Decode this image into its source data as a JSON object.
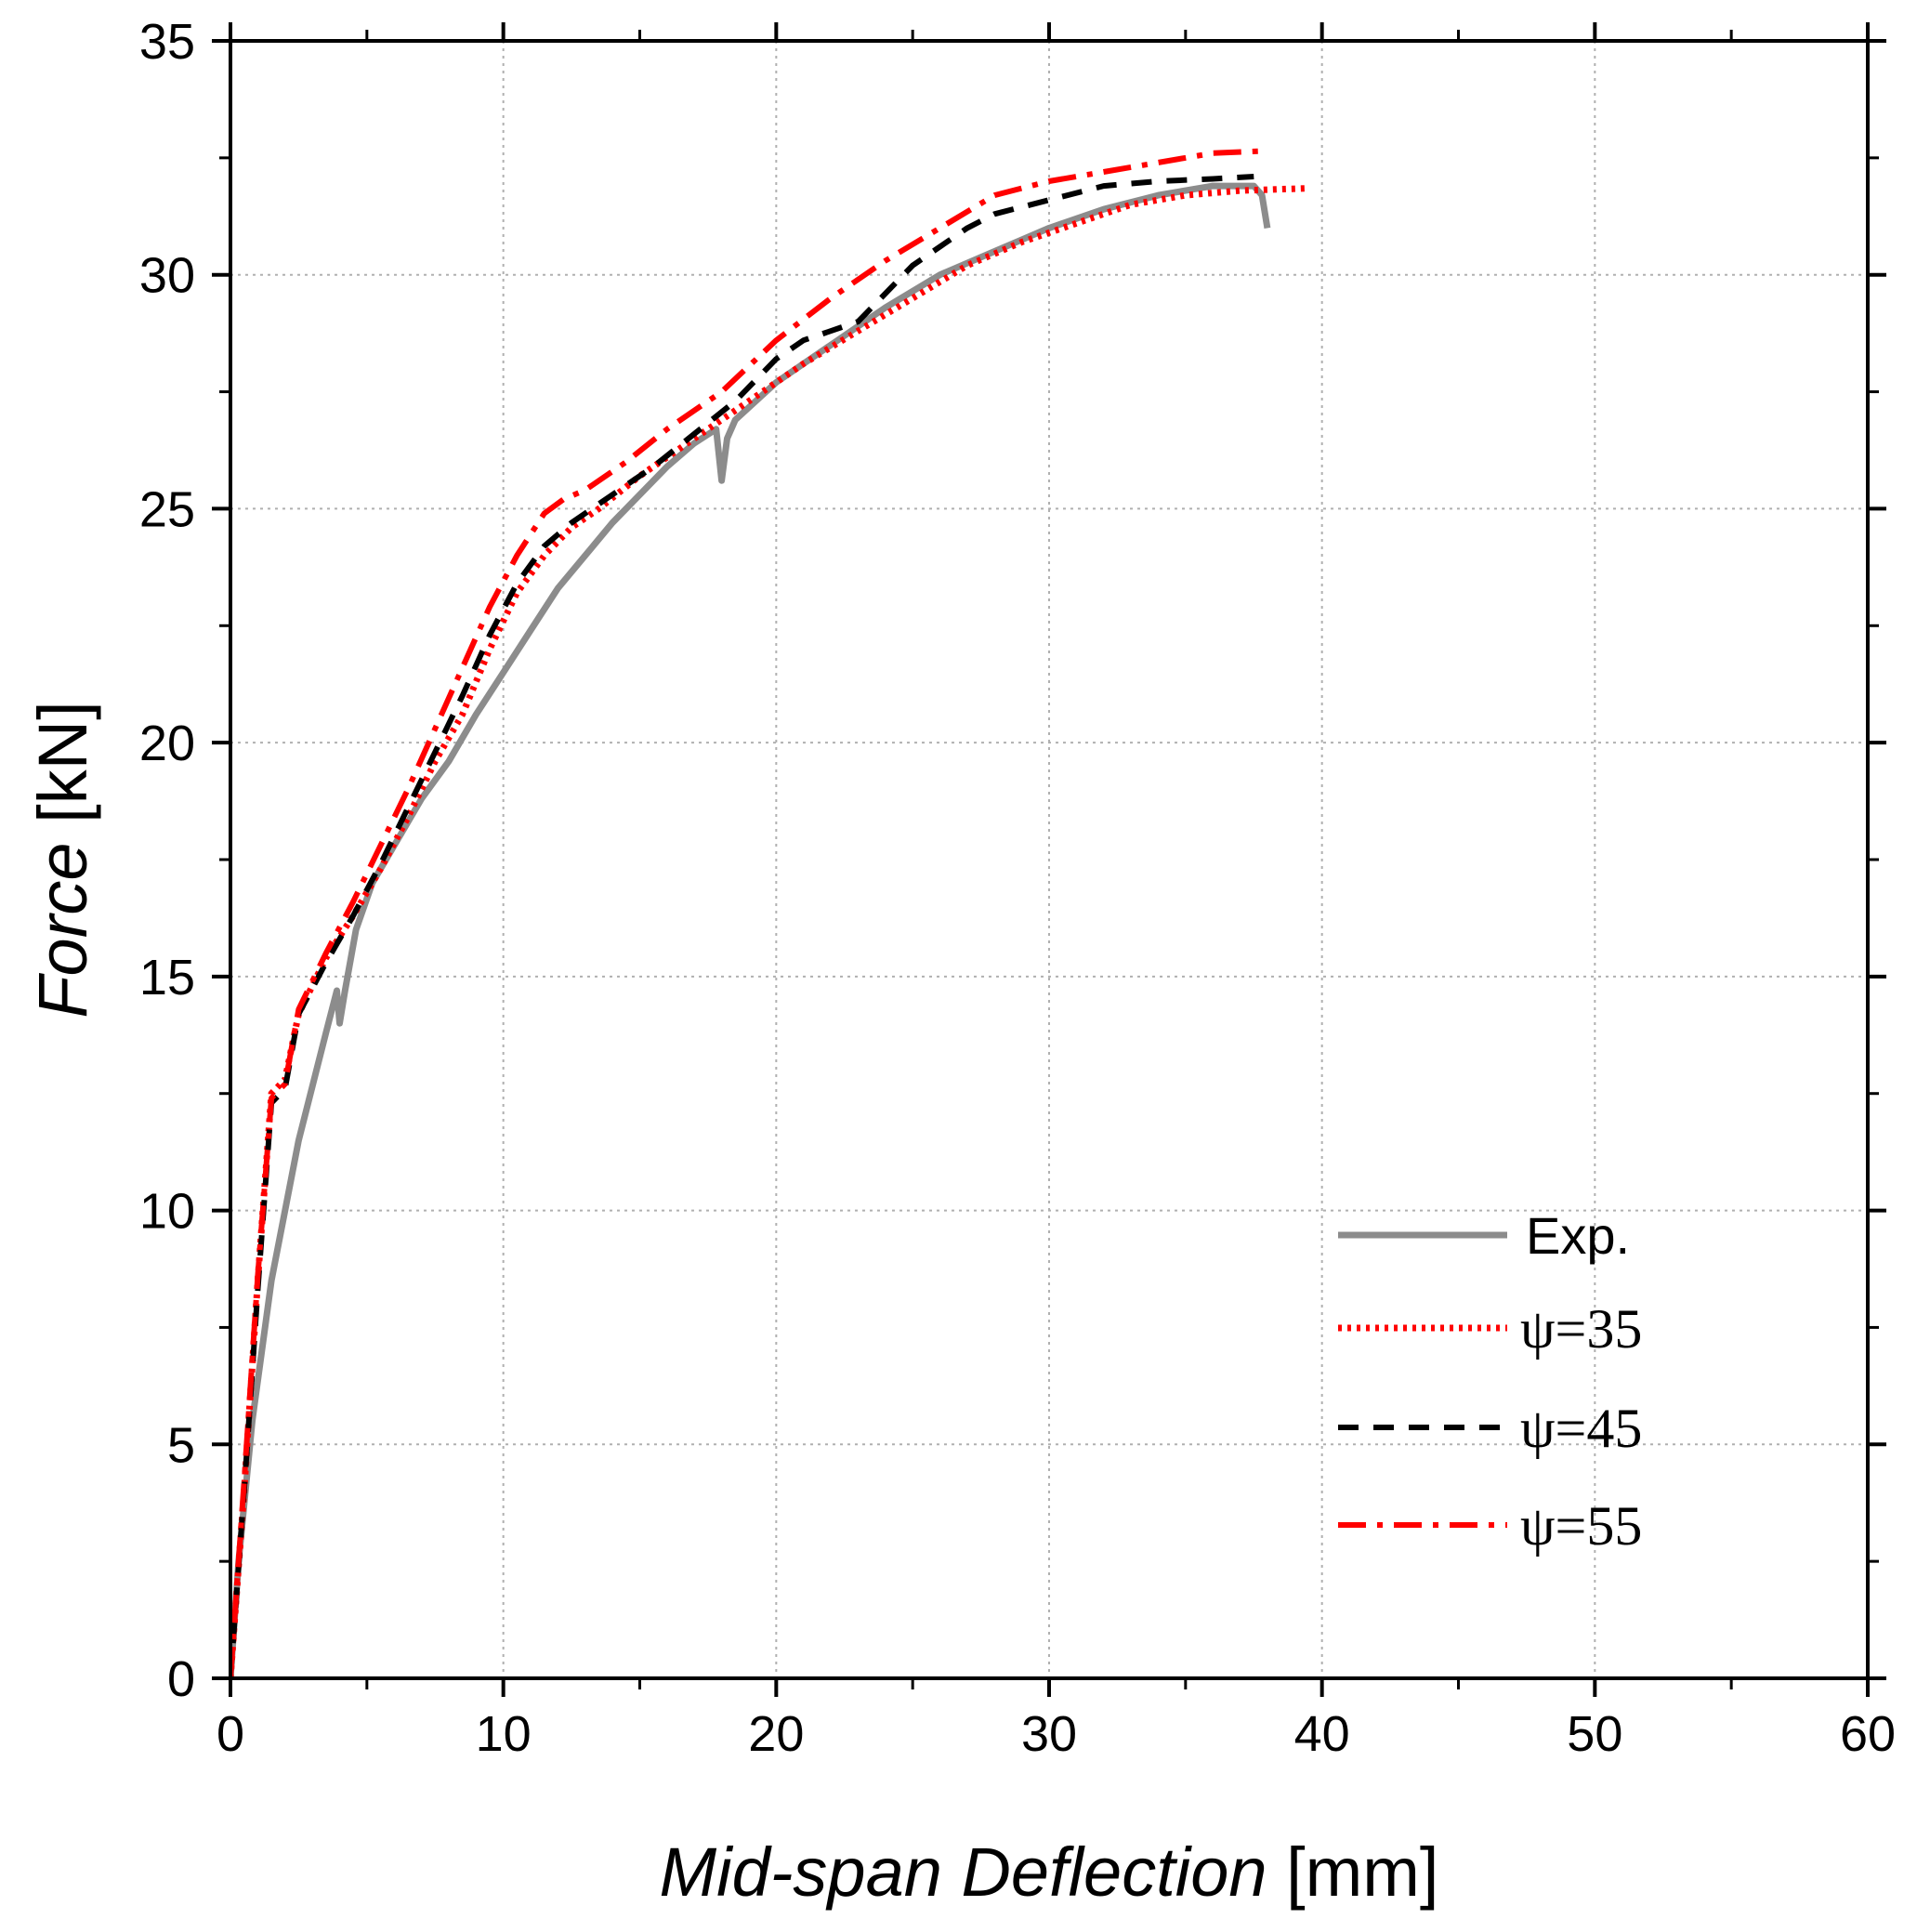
{
  "chart_data": {
    "type": "line",
    "title": "",
    "xlabel_italic": "Mid-span Deflection",
    "xlabel_unit": "[mm]",
    "ylabel_italic": "Force",
    "ylabel_unit": "[kN]",
    "xlim": [
      0,
      60
    ],
    "ylim": [
      0,
      35
    ],
    "xticks": [
      0,
      10,
      20,
      30,
      40,
      50,
      60
    ],
    "yticks": [
      0,
      5,
      10,
      15,
      20,
      25,
      30,
      35
    ],
    "grid": true,
    "legend_position": "bottom-right",
    "series": [
      {
        "name": "Exp.",
        "color": "#8c8c8c",
        "style": "solid",
        "points": [
          [
            0,
            0
          ],
          [
            0.3,
            2.5
          ],
          [
            0.8,
            5.5
          ],
          [
            1.5,
            8.5
          ],
          [
            2.5,
            11.5
          ],
          [
            3.5,
            13.8
          ],
          [
            3.9,
            14.7
          ],
          [
            4.0,
            14.0
          ],
          [
            4.2,
            14.7
          ],
          [
            4.6,
            16.0
          ],
          [
            5.2,
            17.0
          ],
          [
            6,
            17.8
          ],
          [
            7,
            18.8
          ],
          [
            8,
            19.6
          ],
          [
            9,
            20.6
          ],
          [
            10,
            21.5
          ],
          [
            11,
            22.4
          ],
          [
            12,
            23.3
          ],
          [
            13,
            24.0
          ],
          [
            14,
            24.7
          ],
          [
            15,
            25.3
          ],
          [
            16,
            25.9
          ],
          [
            17,
            26.4
          ],
          [
            17.8,
            26.7
          ],
          [
            18.0,
            25.6
          ],
          [
            18.2,
            26.5
          ],
          [
            18.5,
            26.9
          ],
          [
            20,
            27.7
          ],
          [
            22,
            28.5
          ],
          [
            24,
            29.3
          ],
          [
            26,
            30.0
          ],
          [
            28,
            30.5
          ],
          [
            30,
            31.0
          ],
          [
            32,
            31.4
          ],
          [
            34,
            31.7
          ],
          [
            36,
            31.9
          ],
          [
            37.5,
            31.9
          ],
          [
            37.8,
            31.7
          ],
          [
            38,
            31.0
          ]
        ]
      },
      {
        "name": "ψ=35",
        "color": "#ff0000",
        "style": "dotted",
        "points": [
          [
            0,
            0
          ],
          [
            0.5,
            4
          ],
          [
            1.0,
            8.5
          ],
          [
            1.5,
            12.5
          ],
          [
            2.0,
            12.8
          ],
          [
            2.5,
            14.2
          ],
          [
            3.5,
            15.4
          ],
          [
            4.5,
            16.3
          ],
          [
            5.5,
            17.3
          ],
          [
            6.5,
            18.4
          ],
          [
            7.5,
            19.6
          ],
          [
            8.5,
            20.6
          ],
          [
            9.5,
            22.0
          ],
          [
            10.5,
            23.2
          ],
          [
            11.5,
            24.0
          ],
          [
            12.5,
            24.6
          ],
          [
            13.5,
            25.0
          ],
          [
            15,
            25.7
          ],
          [
            17,
            26.5
          ],
          [
            19,
            27.3
          ],
          [
            21,
            28.1
          ],
          [
            23,
            28.8
          ],
          [
            25,
            29.5
          ],
          [
            27,
            30.2
          ],
          [
            29,
            30.7
          ],
          [
            31,
            31.1
          ],
          [
            33,
            31.5
          ],
          [
            35,
            31.7
          ],
          [
            37,
            31.8
          ],
          [
            39.5,
            31.85
          ]
        ]
      },
      {
        "name": "ψ=45",
        "color": "#000000",
        "style": "dashed",
        "points": [
          [
            0,
            0
          ],
          [
            0.5,
            4
          ],
          [
            1.0,
            8.3
          ],
          [
            1.5,
            12.3
          ],
          [
            2.0,
            12.6
          ],
          [
            2.5,
            14.2
          ],
          [
            3.5,
            15.3
          ],
          [
            4.5,
            16.3
          ],
          [
            5.5,
            17.4
          ],
          [
            6.5,
            18.6
          ],
          [
            7.5,
            19.8
          ],
          [
            8.5,
            21.0
          ],
          [
            9.5,
            22.3
          ],
          [
            10.5,
            23.4
          ],
          [
            11.5,
            24.2
          ],
          [
            12.5,
            24.7
          ],
          [
            14,
            25.3
          ],
          [
            15.5,
            25.9
          ],
          [
            17,
            26.6
          ],
          [
            18.5,
            27.3
          ],
          [
            20,
            28.2
          ],
          [
            21,
            28.6
          ],
          [
            23,
            29.0
          ],
          [
            24,
            29.6
          ],
          [
            25,
            30.2
          ],
          [
            26,
            30.6
          ],
          [
            27,
            31.0
          ],
          [
            28,
            31.3
          ],
          [
            30,
            31.6
          ],
          [
            32,
            31.9
          ],
          [
            34,
            32.0
          ],
          [
            36,
            32.05
          ],
          [
            37.5,
            32.1
          ]
        ]
      },
      {
        "name": "ψ=55",
        "color": "#ff0000",
        "style": "dashdot",
        "points": [
          [
            0,
            0
          ],
          [
            0.5,
            4.2
          ],
          [
            1.0,
            8.6
          ],
          [
            1.5,
            12.4
          ],
          [
            2.0,
            12.7
          ],
          [
            2.5,
            14.3
          ],
          [
            3.5,
            15.5
          ],
          [
            4.5,
            16.6
          ],
          [
            5.5,
            17.8
          ],
          [
            6.5,
            19.0
          ],
          [
            7.5,
            20.3
          ],
          [
            8.5,
            21.6
          ],
          [
            9.5,
            22.9
          ],
          [
            10.5,
            24.0
          ],
          [
            11.5,
            24.9
          ],
          [
            12.2,
            25.2
          ],
          [
            13,
            25.4
          ],
          [
            14.5,
            26.0
          ],
          [
            16,
            26.7
          ],
          [
            18,
            27.5
          ],
          [
            20,
            28.6
          ],
          [
            22,
            29.5
          ],
          [
            24,
            30.3
          ],
          [
            26,
            31.0
          ],
          [
            28,
            31.7
          ],
          [
            30,
            32.0
          ],
          [
            32,
            32.2
          ],
          [
            34,
            32.4
          ],
          [
            36,
            32.6
          ],
          [
            38,
            32.65
          ]
        ]
      }
    ]
  }
}
